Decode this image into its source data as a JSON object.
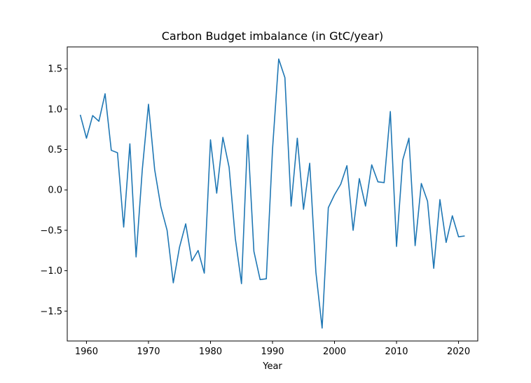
{
  "chart_data": {
    "type": "line",
    "title": "Carbon Budget imbalance (in GtC/year)",
    "xlabel": "Year",
    "ylabel": "",
    "xlim": [
      1956.9,
      2023.1
    ],
    "ylim": [
      -1.87,
      1.77
    ],
    "xticks": [
      1960,
      1970,
      1980,
      1990,
      2000,
      2010,
      2020
    ],
    "yticks": [
      -1.5,
      -1.0,
      -0.5,
      0.0,
      0.5,
      1.0,
      1.5
    ],
    "xtick_labels": [
      "1960",
      "1970",
      "1980",
      "1990",
      "2000",
      "2010",
      "2020"
    ],
    "ytick_labels": [
      "−1.5",
      "−1.0",
      "−0.5",
      "0.0",
      "0.5",
      "1.0",
      "1.5"
    ],
    "grid": false,
    "line_color": "#1f77b4",
    "x": [
      1959,
      1960,
      1961,
      1962,
      1963,
      1964,
      1965,
      1966,
      1967,
      1968,
      1969,
      1970,
      1971,
      1972,
      1973,
      1974,
      1975,
      1976,
      1977,
      1978,
      1979,
      1980,
      1981,
      1982,
      1983,
      1984,
      1985,
      1986,
      1987,
      1988,
      1989,
      1990,
      1991,
      1992,
      1993,
      1994,
      1995,
      1996,
      1997,
      1998,
      1999,
      2000,
      2001,
      2002,
      2003,
      2004,
      2005,
      2006,
      2007,
      2008,
      2009,
      2010,
      2011,
      2012,
      2013,
      2014,
      2015,
      2016,
      2017,
      2018,
      2019,
      2020,
      2021
    ],
    "series": [
      {
        "values": [
          0.93,
          0.64,
          0.92,
          0.85,
          1.19,
          0.49,
          0.46,
          -0.46,
          0.57,
          -0.83,
          0.25,
          1.06,
          0.25,
          -0.21,
          -0.5,
          -1.15,
          -0.71,
          -0.42,
          -0.88,
          -0.75,
          -1.03,
          0.62,
          -0.04,
          0.65,
          0.28,
          -0.6,
          -1.16,
          0.68,
          -0.76,
          -1.11,
          -1.1,
          0.5,
          1.62,
          1.39,
          -0.2,
          0.64,
          -0.24,
          0.33,
          -1.02,
          -1.71,
          -0.22,
          -0.06,
          0.07,
          0.3,
          -0.5,
          0.14,
          -0.2,
          0.31,
          0.1,
          0.09,
          0.97,
          -0.7,
          0.37,
          0.64,
          -0.69,
          0.08,
          -0.14,
          -0.97,
          -0.12,
          -0.65,
          -0.32,
          -0.58,
          -0.57
        ]
      }
    ]
  }
}
